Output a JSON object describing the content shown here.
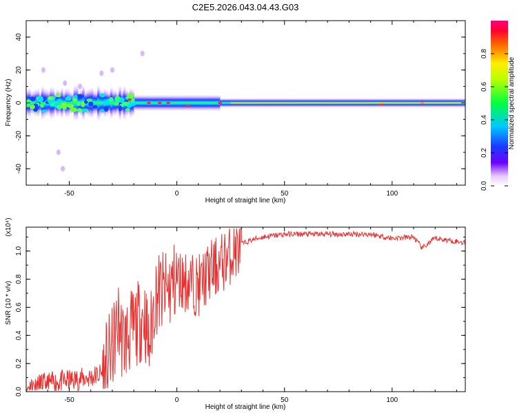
{
  "title": "C2E5.2026.043.04.43.G03",
  "chart_data": [
    {
      "type": "heatmap",
      "title": "C2E5.2026.043.04.43.G03",
      "xlabel": "Height of straight line (km)",
      "ylabel": "Frequency (Hz)",
      "xlim": [
        -70,
        134
      ],
      "ylim": [
        -50,
        50
      ],
      "xticks": [
        -50,
        0,
        50,
        100
      ],
      "xtick_labels": [
        "-50",
        "0",
        "50",
        "100"
      ],
      "yticks": [
        -40,
        -20,
        0,
        20,
        40
      ],
      "ytick_labels": [
        "-40",
        "-20",
        "0",
        "20",
        "40"
      ],
      "colorbar": {
        "label": "Normalized spectral amplitude",
        "range": [
          0,
          1
        ],
        "ticks": [
          0,
          0.2,
          0.4,
          0.6,
          0.8
        ],
        "tick_labels": [
          "0.0",
          "0.2",
          "0.4",
          "0.6",
          "0.8"
        ],
        "colormap": "rainbow"
      },
      "band": {
        "description": "Narrow band of energy centred near 0 Hz across all heights",
        "center_hz": 0,
        "halfwidth_hz_near_surface": 8,
        "halfwidth_hz_above_20km": 3
      },
      "scatter_outliers": [
        {
          "x": -55,
          "y": -30
        },
        {
          "x": -53,
          "y": -40
        },
        {
          "x": -35,
          "y": 18
        },
        {
          "x": -30,
          "y": 20
        },
        {
          "x": -16,
          "y": 30
        },
        {
          "x": -52,
          "y": 12
        },
        {
          "x": -62,
          "y": 20
        },
        {
          "x": -45,
          "y": 10
        }
      ]
    },
    {
      "type": "line",
      "xlabel": "Height of straight line (km)",
      "ylabel": "SNR (10 * v/v)",
      "y_multiplier": "(x10⁴)",
      "xlim": [
        -70,
        134
      ],
      "ylim": [
        0,
        1.17
      ],
      "xticks": [
        -50,
        0,
        50,
        100
      ],
      "xtick_labels": [
        "-50",
        "0",
        "50",
        "100"
      ],
      "yticks": [
        0,
        0.2,
        0.4,
        0.6,
        0.8,
        1.0
      ],
      "ytick_labels": [
        "0.0",
        "0.2",
        "0.4",
        "0.6",
        "0.8",
        "1.0"
      ],
      "color": "#e8302f",
      "series": [
        {
          "name": "SNR",
          "x": [
            -70,
            -60,
            -50,
            -40,
            -35,
            -30,
            -27,
            -25,
            -20,
            -15,
            -13,
            -10,
            -5,
            0,
            5,
            10,
            15,
            20,
            25,
            30,
            35,
            40,
            50,
            60,
            70,
            80,
            90,
            100,
            110,
            114,
            120,
            134
          ],
          "y": [
            0.03,
            0.06,
            0.08,
            0.1,
            0.13,
            0.3,
            0.5,
            0.35,
            0.45,
            0.55,
            0.3,
            0.7,
            0.7,
            0.8,
            0.78,
            0.75,
            0.85,
            0.9,
            0.98,
            1.05,
            1.08,
            1.1,
            1.12,
            1.12,
            1.12,
            1.12,
            1.12,
            1.09,
            1.1,
            1.02,
            1.09,
            1.06
          ]
        }
      ]
    }
  ]
}
